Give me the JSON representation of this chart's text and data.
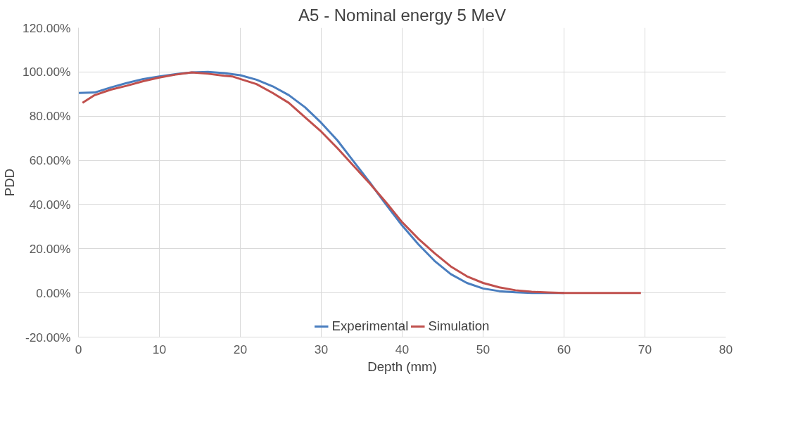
{
  "chart_data": {
    "type": "line",
    "title": "A5 - Nominal energy 5 MeV",
    "xlabel": "Depth (mm)",
    "ylabel": "PDD",
    "xlim": [
      0,
      80
    ],
    "xticks": [
      0,
      10,
      20,
      30,
      40,
      50,
      60,
      70,
      80
    ],
    "ylim": [
      -20,
      120
    ],
    "yticks": [
      {
        "value": -20,
        "label": "-20.00%"
      },
      {
        "value": 0,
        "label": "0.00%"
      },
      {
        "value": 20,
        "label": "20.00%"
      },
      {
        "value": 40,
        "label": "40.00%"
      },
      {
        "value": 60,
        "label": "60.00%"
      },
      {
        "value": 80,
        "label": "80.00%"
      },
      {
        "value": 100,
        "label": "100.00%"
      },
      {
        "value": 120,
        "label": "120.00%"
      }
    ],
    "grid": true,
    "legend": "bottom",
    "marker": "none",
    "line_style": "solid",
    "series": [
      {
        "name": "Experimental",
        "color": "#4a7ebf",
        "x": [
          0,
          2,
          4,
          6,
          8,
          10,
          12,
          14,
          16,
          18,
          20,
          22,
          24,
          26,
          28,
          30,
          32,
          34,
          36,
          38,
          40,
          42,
          44,
          46,
          48,
          50,
          52,
          54,
          56,
          60
        ],
        "values": [
          90.5,
          90.7,
          93,
          95,
          96.8,
          98,
          99,
          99.8,
          100,
          99.5,
          98.5,
          96.5,
          93.5,
          89.5,
          84,
          77,
          69,
          59.5,
          50,
          40,
          30.5,
          22,
          14.5,
          8.5,
          4.5,
          2,
          0.8,
          0.3,
          0,
          0
        ]
      },
      {
        "name": "Simulation",
        "color": "#c0504d",
        "x": [
          0.5,
          2,
          4,
          6,
          8,
          10,
          12,
          14,
          16,
          18,
          19,
          20,
          22,
          24,
          26,
          28,
          30,
          32,
          34,
          36,
          38,
          40,
          42,
          44,
          46,
          48,
          50,
          52,
          54,
          56,
          58,
          60,
          65,
          69.5
        ],
        "values": [
          86,
          89.5,
          92,
          93.8,
          95.8,
          97.5,
          98.8,
          99.8,
          99.2,
          98.3,
          98,
          96.8,
          94.5,
          90.5,
          86,
          79.5,
          73,
          65.5,
          57.5,
          49.5,
          41,
          32,
          24.5,
          18,
          12,
          7.5,
          4.5,
          2.5,
          1.2,
          0.5,
          0.2,
          0,
          0,
          0
        ]
      }
    ]
  }
}
